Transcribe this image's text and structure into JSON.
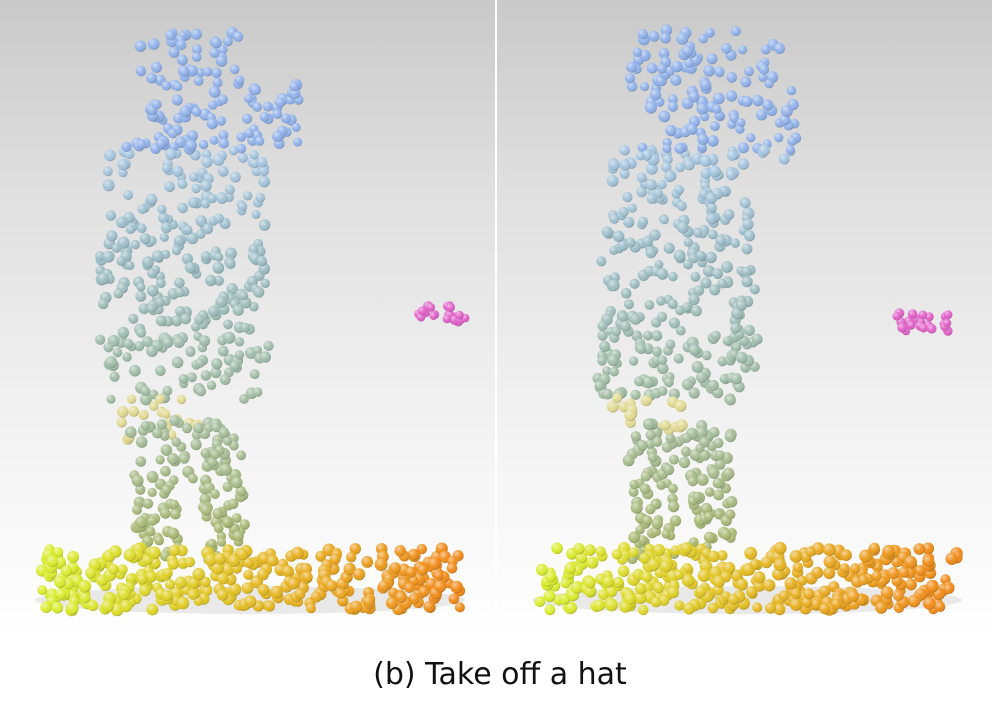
{
  "caption": "(b) Take off a hat",
  "panels": [
    {
      "name": "panel-before",
      "pose": "hand-on-brim"
    },
    {
      "name": "panel-after",
      "pose": "hand-lifting-hat"
    }
  ],
  "colors": {
    "hat": "#8fb0e8",
    "head": "#a4c4e0",
    "torso": "#9bbcc4",
    "legs": "#a9b870",
    "floor_left": "#d8ec2c",
    "floor_right": "#f08a18",
    "object": "#e060c8"
  }
}
